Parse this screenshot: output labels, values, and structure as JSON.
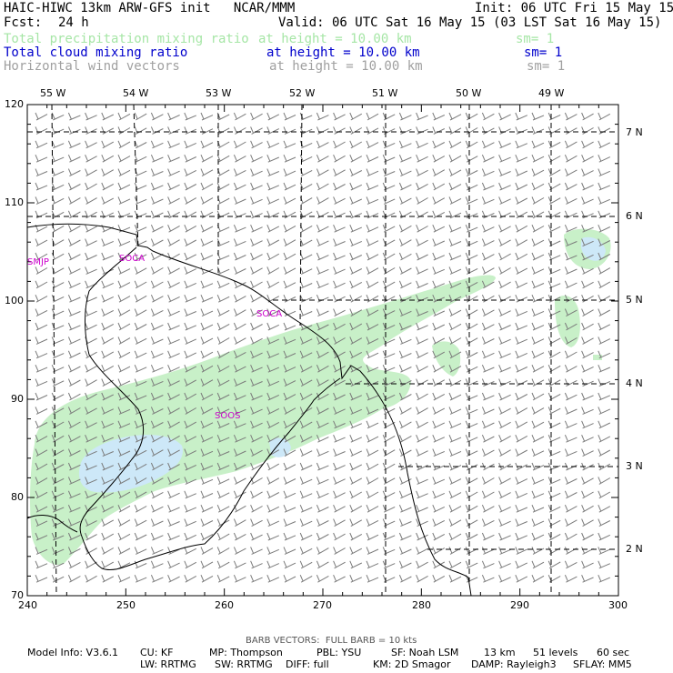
{
  "header": {
    "left_title": "HAIC-HIWC 13km ARW-GFS init   NCAR/MMM",
    "init": "Init: 06 UTC Fri 15 May 15",
    "fcst_label": "Fcst:",
    "fcst_value": "24 h",
    "valid": "Valid: 06 UTC Sat 16 May 15 (03 LST Sat 16 May 15)"
  },
  "fields": [
    {
      "name": "Total precipitation mixing ratio",
      "height": "at height = 10.00 km",
      "sm": "sm= 1",
      "color": "#a6e6a6"
    },
    {
      "name": "Total cloud mixing ratio",
      "height": "at height = 10.00 km",
      "sm": "sm= 1",
      "color": "#0000cc"
    },
    {
      "name": "Horizontal wind vectors",
      "height": "at height = 10.00 km",
      "sm": "sm= 1",
      "color": "#a0a0a0"
    }
  ],
  "map": {
    "x_ticks": [
      "240",
      "250",
      "260",
      "270",
      "280",
      "290",
      "300"
    ],
    "y_ticks": [
      "120",
      "110",
      "100",
      "90",
      "80",
      "70"
    ],
    "lon_labels": [
      "55 W",
      "54 W",
      "53 W",
      "52 W",
      "51 W",
      "50 W",
      "49 W"
    ],
    "lat_labels": [
      "7 N",
      "6 N",
      "5 N",
      "4 N",
      "3 N",
      "2 N"
    ],
    "stations": [
      "SMJP",
      "SOCA",
      "SOCA",
      "SOOS"
    ],
    "colors": {
      "precip": "#c8f0c8",
      "cloud": "#cde8f8",
      "station": "#cc00cc",
      "barb": "#7a7a7a",
      "coast": "#000000"
    }
  },
  "footer": {
    "barb_note": "BARB VECTORS:  FULL BARB = 10 kts",
    "line1": [
      "Model Info: V3.6.1",
      "CU: KF",
      "MP: Thompson",
      "PBL: YSU",
      "SF: Noah LSM",
      "13 km",
      "51 levels",
      "60 sec"
    ],
    "line2": [
      "LW: RRTMG",
      "SW: RRTMG",
      "DIFF: full",
      "KM: 2D Smagor",
      "DAMP: Rayleigh3",
      "SFLAY: MM5"
    ]
  }
}
